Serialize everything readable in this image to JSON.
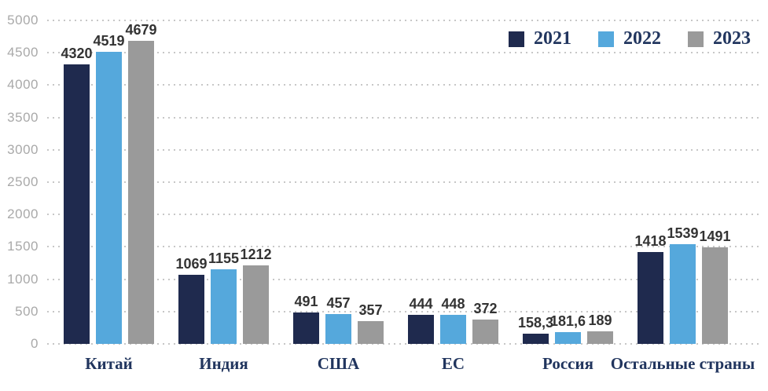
{
  "chart_data": {
    "type": "bar",
    "title": "",
    "xlabel": "",
    "ylabel": "",
    "categories": [
      "Китай",
      "Индия",
      "США",
      "ЕС",
      "Россия",
      "Остальные страны"
    ],
    "series": [
      {
        "name": "2021",
        "color": "#1f2a4e",
        "values": [
          4320,
          1069,
          491,
          444,
          158.3,
          1418
        ],
        "labels": [
          "4320",
          "1069",
          "491",
          "444",
          "158,3",
          "1418"
        ]
      },
      {
        "name": "2022",
        "color": "#55a8dc",
        "values": [
          4519,
          1155,
          457,
          448,
          181.6,
          1539
        ],
        "labels": [
          "4519",
          "1155",
          "457",
          "448",
          "181,6",
          "1539"
        ]
      },
      {
        "name": "2023",
        "color": "#9a9a9a",
        "values": [
          4679,
          1212,
          357,
          372,
          189,
          1491
        ],
        "labels": [
          "4679",
          "1212",
          "357",
          "372",
          "189",
          "1491"
        ]
      }
    ],
    "ylim": [
      0,
      5000
    ],
    "ytick_step": 500,
    "yticks": [
      "0",
      "500",
      "1000",
      "1500",
      "2000",
      "2500",
      "3000",
      "3500",
      "4000",
      "4500",
      "5000"
    ],
    "grid": "horizontal-dotted",
    "legend_position": "top-right"
  },
  "colors": {
    "series_2021": "#1f2a4e",
    "series_2022": "#55a8dc",
    "series_2023": "#9a9a9a",
    "gridline": "#c7c7c7",
    "y_tick_label": "#a9a9a9",
    "value_label": "#333333",
    "category_label": "#21355e",
    "background": "#ffffff"
  }
}
